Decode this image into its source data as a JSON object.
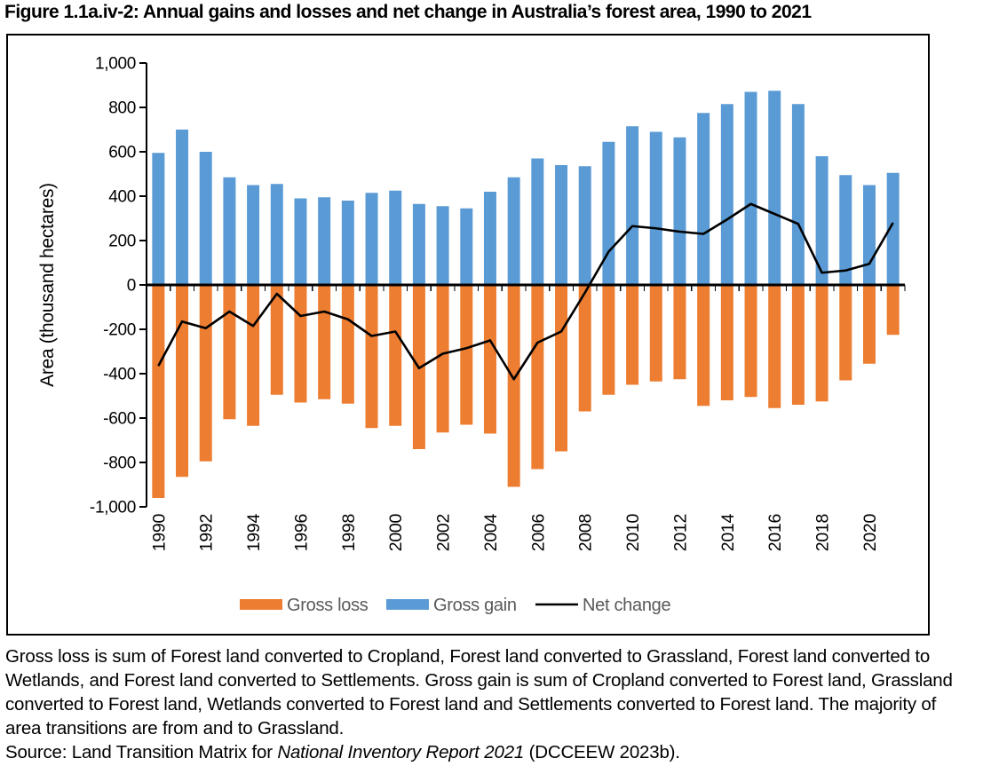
{
  "title": "Figure 1.1a.iv-2: Annual gains and losses and net change in Australia’s forest area, 1990 to 2021",
  "chart_data": {
    "type": "bar",
    "title": "",
    "xlabel": "",
    "ylabel": "Area (thousand hectares)",
    "ylim": [
      -1000,
      1000
    ],
    "grid": false,
    "legend_position": "bottom",
    "categories": [
      1990,
      1991,
      1992,
      1993,
      1994,
      1995,
      1996,
      1997,
      1998,
      1999,
      2000,
      2001,
      2002,
      2003,
      2004,
      2005,
      2006,
      2007,
      2008,
      2009,
      2010,
      2011,
      2012,
      2013,
      2014,
      2015,
      2016,
      2017,
      2018,
      2019,
      2020,
      2021
    ],
    "x_tick_labels": [
      "1990",
      "1992",
      "1994",
      "1996",
      "1998",
      "2000",
      "2002",
      "2004",
      "2006",
      "2008",
      "2010",
      "2012",
      "2014",
      "2016",
      "2018",
      "2020"
    ],
    "y_ticks": [
      {
        "label": "1,000",
        "value": 1000
      },
      {
        "label": "800",
        "value": 800
      },
      {
        "label": "600",
        "value": 600
      },
      {
        "label": "400",
        "value": 400
      },
      {
        "label": "200",
        "value": 200
      },
      {
        "label": "0",
        "value": 0
      },
      {
        "label": "-200",
        "value": -200
      },
      {
        "label": "-400",
        "value": -400
      },
      {
        "label": "-600",
        "value": -600
      },
      {
        "label": "-800",
        "value": -800
      },
      {
        "label": "-1,000",
        "value": -1000
      }
    ],
    "series": [
      {
        "name": "Gross loss",
        "type": "bar",
        "color": "#ED7D31",
        "values": [
          -960,
          -865,
          -795,
          -605,
          -635,
          -495,
          -530,
          -515,
          -535,
          -645,
          -635,
          -740,
          -665,
          -630,
          -670,
          -910,
          -830,
          -750,
          -570,
          -495,
          -450,
          -435,
          -425,
          -545,
          -520,
          -505,
          -555,
          -540,
          -525,
          -430,
          -355,
          -225
        ]
      },
      {
        "name": "Gross gain",
        "type": "bar",
        "color": "#5B9BD5",
        "values": [
          595,
          700,
          600,
          485,
          450,
          455,
          390,
          395,
          380,
          415,
          425,
          365,
          355,
          345,
          420,
          485,
          570,
          540,
          535,
          645,
          715,
          690,
          665,
          775,
          815,
          870,
          875,
          815,
          580,
          495,
          450,
          505
        ]
      },
      {
        "name": "Net change",
        "type": "line",
        "color": "#000000",
        "values": [
          -365,
          -165,
          -195,
          -120,
          -185,
          -40,
          -140,
          -120,
          -155,
          -230,
          -210,
          -375,
          -310,
          -285,
          -250,
          -425,
          -260,
          -210,
          -35,
          150,
          265,
          255,
          240,
          230,
          295,
          365,
          320,
          275,
          55,
          65,
          95,
          280
        ]
      }
    ],
    "axis_color": "#000000",
    "legend_text_color": "#595959"
  },
  "footnote": {
    "lines": [
      "Gross loss is sum of Forest land converted to Cropland, Forest land converted to Grassland, Forest land converted to",
      "Wetlands, and Forest land converted to Settlements. Gross gain is sum of Cropland converted to Forest land, Grassland",
      "converted to Forest land, Wetlands converted to Forest land and Settlements converted to Forest land. The majority of",
      "area transitions are from and to Grassland."
    ],
    "source_prefix": "Source: Land Transition Matrix for ",
    "source_italic": "National Inventory Report 2021",
    "source_suffix": " (DCCEEW 2023b)."
  }
}
